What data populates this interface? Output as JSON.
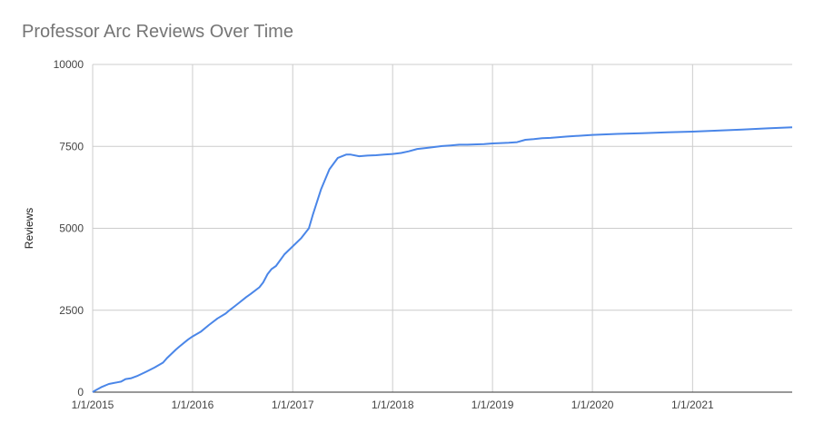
{
  "chart_data": {
    "type": "line",
    "title": "Professor Arc Reviews Over Time",
    "xlabel": "",
    "ylabel": "Reviews",
    "ylim": [
      0,
      10000
    ],
    "y_ticks": [
      0,
      2500,
      5000,
      7500,
      10000
    ],
    "y_tick_labels": [
      "0",
      "2500",
      "5000",
      "7500",
      "10000"
    ],
    "x_ticks": [
      "2015-01-01",
      "2016-01-01",
      "2017-01-01",
      "2018-01-01",
      "2019-01-01",
      "2020-01-01",
      "2021-01-01"
    ],
    "x_tick_labels": [
      "1/1/2015",
      "1/1/2016",
      "1/1/2017",
      "1/1/2018",
      "1/1/2019",
      "1/1/2020",
      "1/1/2021"
    ],
    "x_range": [
      "2015-01-01",
      "2021-12-31"
    ],
    "grid": true,
    "legend": "none",
    "line_color": "#4a86e8",
    "series": [
      {
        "x": [
          "2015-01-01",
          "2015-01-10",
          "2015-02-01",
          "2015-03-01",
          "2015-04-01",
          "2015-04-15",
          "2015-05-01",
          "2015-05-20",
          "2015-06-15",
          "2015-07-15",
          "2015-08-15",
          "2015-09-15",
          "2015-10-01",
          "2015-11-01",
          "2015-11-15",
          "2015-12-15",
          "2016-01-01",
          "2016-02-01",
          "2016-03-01",
          "2016-04-01",
          "2016-05-01",
          "2016-05-15",
          "2016-06-15",
          "2016-07-15",
          "2016-08-01",
          "2016-09-01",
          "2016-09-15",
          "2016-10-01",
          "2016-10-15",
          "2016-11-01",
          "2016-12-01",
          "2017-01-01",
          "2017-02-01",
          "2017-03-01",
          "2017-03-15",
          "2017-04-15",
          "2017-05-15",
          "2017-06-15",
          "2017-07-15",
          "2017-08-01",
          "2017-09-01",
          "2017-10-01",
          "2017-11-01",
          "2017-12-01",
          "2018-01-01",
          "2018-02-01",
          "2018-03-01",
          "2018-04-01",
          "2018-05-01",
          "2018-06-01",
          "2018-07-01",
          "2018-08-01",
          "2018-09-01",
          "2018-10-01",
          "2018-12-01",
          "2019-01-01",
          "2019-02-01",
          "2019-03-01",
          "2019-04-01",
          "2019-05-01",
          "2019-06-01",
          "2019-07-01",
          "2019-08-01",
          "2019-10-01",
          "2020-01-01",
          "2020-04-01",
          "2020-07-01",
          "2020-10-01",
          "2021-01-01",
          "2021-04-01",
          "2021-07-01",
          "2021-10-01",
          "2021-12-31"
        ],
        "values": [
          0,
          50,
          150,
          250,
          300,
          320,
          400,
          420,
          500,
          620,
          750,
          900,
          1050,
          1300,
          1400,
          1600,
          1700,
          1850,
          2050,
          2250,
          2400,
          2500,
          2700,
          2900,
          3000,
          3200,
          3350,
          3600,
          3750,
          3850,
          4200,
          4450,
          4700,
          5000,
          5400,
          6200,
          6800,
          7150,
          7250,
          7250,
          7200,
          7220,
          7230,
          7250,
          7270,
          7300,
          7350,
          7420,
          7450,
          7480,
          7510,
          7530,
          7550,
          7550,
          7570,
          7590,
          7600,
          7610,
          7630,
          7700,
          7720,
          7750,
          7760,
          7800,
          7850,
          7880,
          7900,
          7930,
          7950,
          7980,
          8010,
          8050,
          8080
        ]
      }
    ]
  }
}
